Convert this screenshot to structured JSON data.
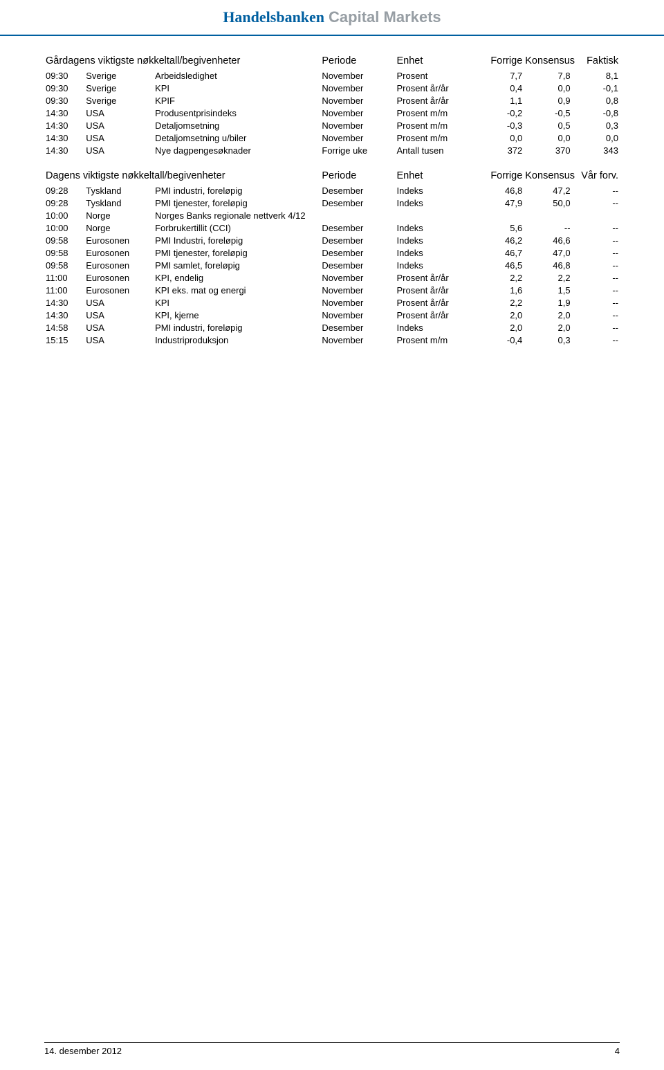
{
  "brand": {
    "name": "Handelsbanken",
    "suffix": "Capital Markets"
  },
  "table1": {
    "headers": [
      "Gårdagens viktigste nøkkeltall/begivenheter",
      "Periode",
      "Enhet",
      "Forrige",
      "Konsensus",
      "Faktisk"
    ],
    "rows": [
      [
        "09:30",
        "Sverige",
        "Arbeidsledighet",
        "November",
        "Prosent",
        "7,7",
        "7,8",
        "8,1"
      ],
      [
        "09:30",
        "Sverige",
        "KPI",
        "November",
        "Prosent år/år",
        "0,4",
        "0,0",
        "-0,1"
      ],
      [
        "09:30",
        "Sverige",
        "KPIF",
        "November",
        "Prosent år/år",
        "1,1",
        "0,9",
        "0,8"
      ],
      [
        "14:30",
        "USA",
        "Produsentprisindeks",
        "November",
        "Prosent m/m",
        "-0,2",
        "-0,5",
        "-0,8"
      ],
      [
        "14:30",
        "USA",
        "Detaljomsetning",
        "November",
        "Prosent m/m",
        "-0,3",
        "0,5",
        "0,3"
      ],
      [
        "14:30",
        "USA",
        "Detaljomsetning u/biler",
        "November",
        "Prosent m/m",
        "0,0",
        "0,0",
        "0,0"
      ],
      [
        "14:30",
        "USA",
        "Nye dagpengesøknader",
        "Forrige uke",
        "Antall tusen",
        "372",
        "370",
        "343"
      ]
    ]
  },
  "table2": {
    "headers": [
      "Dagens viktigste nøkkeltall/begivenheter",
      "Periode",
      "Enhet",
      "Forrige",
      "Konsensus",
      "Vår forv."
    ],
    "rows": [
      [
        "09:28",
        "Tyskland",
        "PMI industri, foreløpig",
        "Desember",
        "Indeks",
        "46,8",
        "47,2",
        "--"
      ],
      [
        "09:28",
        "Tyskland",
        "PMI tjenester, foreløpig",
        "Desember",
        "Indeks",
        "47,9",
        "50,0",
        "--"
      ],
      [
        "10:00",
        "Norge",
        "Norges Banks regionale nettverk 4/12",
        "",
        "",
        "",
        "",
        ""
      ],
      [
        "10:00",
        "Norge",
        "Forbrukertillit (CCI)",
        "Desember",
        "Indeks",
        "5,6",
        "--",
        "--"
      ],
      [
        "09:58",
        "Eurosonen",
        "PMI Industri, foreløpig",
        "Desember",
        "Indeks",
        "46,2",
        "46,6",
        "--"
      ],
      [
        "09:58",
        "Eurosonen",
        "PMI tjenester, foreløpig",
        "Desember",
        "Indeks",
        "46,7",
        "47,0",
        "--"
      ],
      [
        "09:58",
        "Eurosonen",
        "PMI samlet, foreløpig",
        "Desember",
        "Indeks",
        "46,5",
        "46,8",
        "--"
      ],
      [
        "11:00",
        "Eurosonen",
        "KPI, endelig",
        "November",
        "Prosent år/år",
        "2,2",
        "2,2",
        "--"
      ],
      [
        "11:00",
        "Eurosonen",
        "KPI eks. mat og energi",
        "November",
        "Prosent år/år",
        "1,6",
        "1,5",
        "--"
      ],
      [
        "14:30",
        "USA",
        "KPI",
        "November",
        "Prosent år/år",
        "2,2",
        "1,9",
        "--"
      ],
      [
        "14:30",
        "USA",
        "KPI, kjerne",
        "November",
        "Prosent år/år",
        "2,0",
        "2,0",
        "--"
      ],
      [
        "14:58",
        "USA",
        "PMI industri, foreløpig",
        "Desember",
        "Indeks",
        "2,0",
        "2,0",
        "--"
      ],
      [
        "15:15",
        "USA",
        "Industriproduksjon",
        "November",
        "Prosent m/m",
        "-0,4",
        "0,3",
        "--"
      ]
    ]
  },
  "footer": {
    "date": "14. desember 2012",
    "page": "4"
  }
}
